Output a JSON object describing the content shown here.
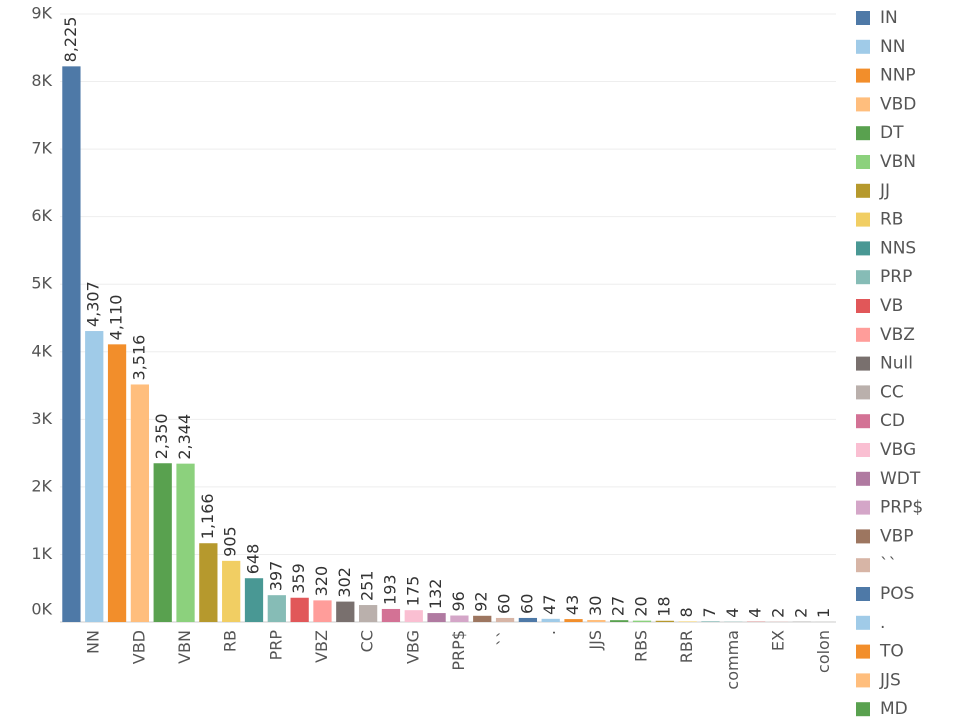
{
  "chart_data": {
    "type": "bar",
    "categories": [
      null,
      "NN",
      null,
      "VBD",
      null,
      "VBN",
      null,
      "RB",
      null,
      "PRP",
      null,
      "VBZ",
      null,
      "CC",
      null,
      "VBG",
      null,
      "PRP$",
      null,
      "``",
      null,
      ".",
      null,
      "JJS",
      null,
      "RBS",
      null,
      "RBR",
      null,
      "comma",
      null,
      "EX",
      null,
      "colon"
    ],
    "values": [
      8225,
      4307,
      4110,
      3516,
      2350,
      2344,
      1166,
      905,
      648,
      397,
      359,
      320,
      302,
      251,
      193,
      175,
      132,
      96,
      92,
      60,
      60,
      47,
      43,
      30,
      27,
      20,
      18,
      8,
      7,
      4,
      4,
      2,
      2,
      1
    ],
    "value_labels": [
      "8,225",
      "4,307",
      "4,110",
      "3,516",
      "2,350",
      "2,344",
      "1,166",
      "905",
      "648",
      "397",
      "359",
      "320",
      "302",
      "251",
      "193",
      "175",
      "132",
      "96",
      "92",
      "60",
      "60",
      "47",
      "43",
      "30",
      "27",
      "20",
      "18",
      "8",
      "7",
      "4",
      "4",
      "2",
      "2",
      "1"
    ],
    "colors": [
      "#4e79a7",
      "#a0cbe8",
      "#f28e2b",
      "#ffbe7d",
      "#59a14f",
      "#8cd17d",
      "#b6992d",
      "#f1ce63",
      "#499894",
      "#86bcb6",
      "#e15759",
      "#ff9d9a",
      "#79706e",
      "#bab0ac",
      "#d37295",
      "#fabfd2",
      "#b07aa1",
      "#d4a6c8",
      "#9d7660",
      "#d7b5a6",
      "#4e79a7",
      "#a0cbe8",
      "#f28e2b",
      "#ffbe7d",
      "#59a14f",
      "#8cd17d",
      "#b6992d",
      "#f1ce63",
      "#499894",
      "#86bcb6",
      "#e15759",
      "#ff9d9a",
      "#79706e",
      "#bab0ac"
    ],
    "legend": [
      "IN",
      "NN",
      "NNP",
      "VBD",
      "DT",
      "VBN",
      "JJ",
      "RB",
      "NNS",
      "PRP",
      "VB",
      "VBZ",
      "Null",
      "CC",
      "CD",
      "VBG",
      "WDT",
      "PRP$",
      "VBP",
      "``",
      "POS",
      ".",
      "TO",
      "JJS",
      "MD"
    ],
    "ylim": [
      0,
      9000
    ],
    "yticks": [
      {
        "value": 0,
        "label": "0K"
      },
      {
        "value": 1000,
        "label": "1K"
      },
      {
        "value": 2000,
        "label": "2K"
      },
      {
        "value": 3000,
        "label": "3K"
      },
      {
        "value": 4000,
        "label": "4K"
      },
      {
        "value": 5000,
        "label": "5K"
      },
      {
        "value": 6000,
        "label": "6K"
      },
      {
        "value": 7000,
        "label": "7K"
      },
      {
        "value": 8000,
        "label": "8K"
      },
      {
        "value": 9000,
        "label": "9K"
      }
    ],
    "grid": true
  }
}
